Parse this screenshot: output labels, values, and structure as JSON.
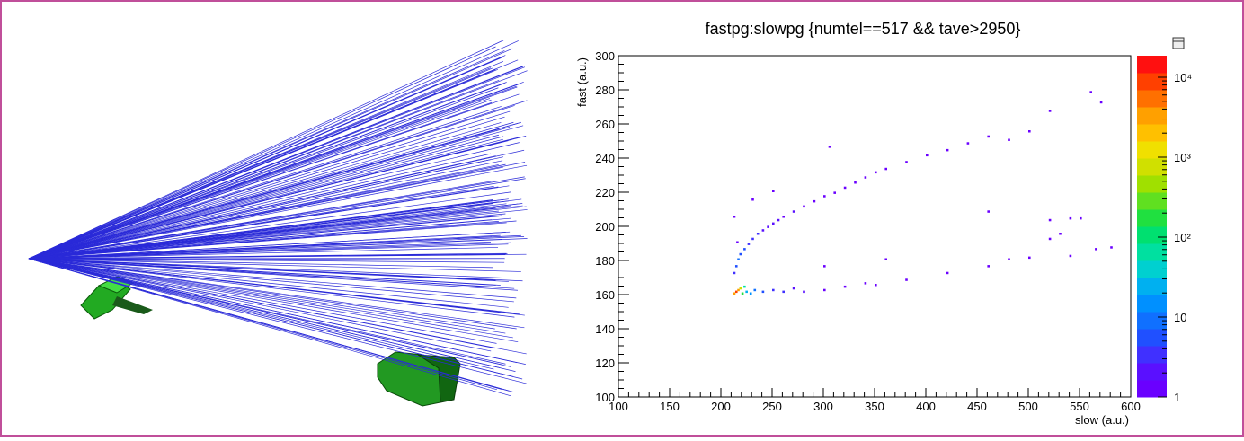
{
  "chart_data": {
    "type": "heatmap",
    "title": "fastpg:slowpg {numtel==517 && tave>2950}",
    "xlabel": "slow (a.u.)",
    "ylabel": "fast (a.u.)",
    "xlim": [
      100,
      600
    ],
    "xticks": [
      100,
      150,
      200,
      250,
      300,
      350,
      400,
      450,
      500,
      550,
      600
    ],
    "ylim": [
      100,
      300
    ],
    "yticks": [
      100,
      120,
      140,
      160,
      180,
      200,
      220,
      240,
      260,
      280,
      300
    ],
    "zlim": [
      1,
      18600
    ],
    "zlog": true,
    "zticks": [
      1,
      10,
      {
        "value": 100,
        "label": "10²"
      },
      {
        "value": 1000,
        "label": "10³"
      },
      {
        "value": 10000,
        "label": "10⁴"
      }
    ],
    "palette": [
      "#6a00ff",
      "#5a10ff",
      "#4030ff",
      "#2050ff",
      "#1070ff",
      "#0090ff",
      "#00b0f0",
      "#00d0d0",
      "#00e0a0",
      "#00e070",
      "#20e040",
      "#60e020",
      "#a0e000",
      "#d0e000",
      "#f0e000",
      "#ffc000",
      "#ffa000",
      "#ff7000",
      "#ff4000",
      "#ff1010"
    ],
    "x": [
      212,
      214,
      216,
      218,
      222,
      226,
      230,
      235,
      240,
      245,
      250,
      255,
      260,
      270,
      280,
      290,
      300,
      310,
      320,
      330,
      340,
      350,
      360,
      380,
      400,
      420,
      440,
      460,
      480,
      500,
      520,
      560,
      570,
      212,
      214,
      216,
      218,
      220,
      222,
      224,
      228,
      232,
      240,
      250,
      260,
      270,
      280,
      300,
      320,
      340,
      350,
      380,
      420,
      460,
      480,
      500,
      540,
      565,
      580,
      212,
      215,
      230,
      250,
      305,
      460,
      520,
      530,
      540,
      550,
      520,
      360,
      300
    ],
    "y": [
      172,
      176,
      180,
      183,
      186,
      189,
      192,
      195,
      197,
      199,
      201,
      203,
      205,
      208,
      211,
      214,
      217,
      219,
      222,
      225,
      228,
      231,
      233,
      237,
      241,
      244,
      248,
      252,
      250,
      255,
      267,
      278,
      272,
      160,
      161,
      162,
      163,
      160,
      164,
      161,
      160,
      162,
      161,
      162,
      161,
      163,
      161,
      162,
      164,
      166,
      165,
      168,
      172,
      176,
      180,
      181,
      182,
      186,
      187,
      205,
      190,
      215,
      220,
      246,
      208,
      203,
      195,
      204,
      204,
      192,
      180,
      176
    ],
    "values": [
      3,
      5,
      8,
      6,
      5,
      4,
      3,
      3,
      2,
      2,
      2,
      2,
      1,
      2,
      1,
      1,
      1,
      1,
      1,
      1,
      1,
      1,
      1,
      1,
      1,
      1,
      1,
      1,
      1,
      1,
      1,
      1,
      1,
      3000,
      10000,
      4000,
      800,
      200,
      60,
      30,
      15,
      10,
      6,
      4,
      3,
      2,
      2,
      1,
      1,
      1,
      1,
      1,
      1,
      1,
      1,
      1,
      1,
      1,
      1,
      1,
      1,
      1,
      1,
      1,
      1,
      1,
      1,
      1,
      1,
      1,
      1,
      1
    ]
  }
}
